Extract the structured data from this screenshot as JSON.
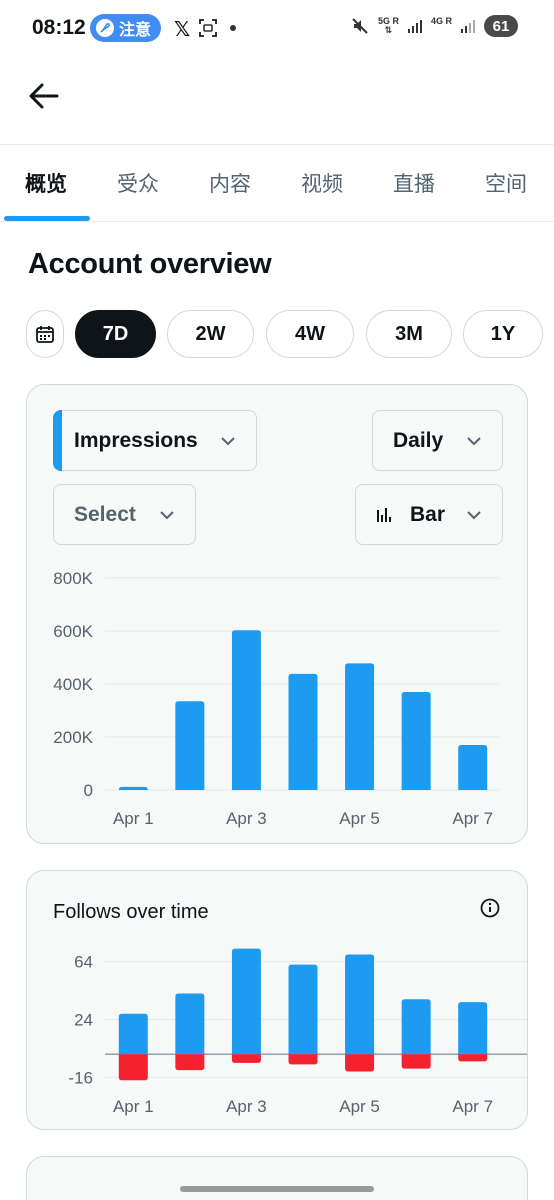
{
  "status_bar": {
    "time": "08:12",
    "notice_label": "注意",
    "x_label": "𝕏",
    "net_5g": "5G",
    "net_4g": "4G",
    "net_r": "R",
    "battery": "61"
  },
  "tabs": [
    {
      "label": "概览",
      "active": true
    },
    {
      "label": "受众",
      "active": false
    },
    {
      "label": "内容",
      "active": false
    },
    {
      "label": "视频",
      "active": false
    },
    {
      "label": "直播",
      "active": false
    },
    {
      "label": "空间",
      "active": false
    }
  ],
  "page_title": "Account overview",
  "ranges": [
    {
      "label": "7D",
      "selected": true
    },
    {
      "label": "2W",
      "selected": false
    },
    {
      "label": "4W",
      "selected": false
    },
    {
      "label": "3M",
      "selected": false
    },
    {
      "label": "1Y",
      "selected": false
    }
  ],
  "controls": {
    "metric": "Impressions",
    "interval": "Daily",
    "compare": "Select",
    "chart_type": "Bar"
  },
  "follows_card": {
    "title": "Follows over time"
  },
  "colors": {
    "accent": "#1d9bf0",
    "negative": "#f4212e",
    "text_primary": "#0f1419",
    "text_secondary": "#536471",
    "card_bg": "#f7f9f9",
    "border": "#cfd9de"
  },
  "chart_data": [
    {
      "type": "bar",
      "categories": [
        "Apr 1",
        "Apr 2",
        "Apr 3",
        "Apr 4",
        "Apr 5",
        "Apr 6",
        "Apr 7"
      ],
      "x_tick_labels": [
        "Apr 1",
        "Apr 3",
        "Apr 5",
        "Apr 7"
      ],
      "values": [
        12000,
        335000,
        603000,
        438000,
        478000,
        370000,
        170000
      ],
      "y_ticks": [
        0,
        200000,
        400000,
        600000,
        800000
      ],
      "y_tick_labels": [
        "0",
        "200K",
        "400K",
        "600K",
        "800K"
      ],
      "ylim": [
        0,
        800000
      ],
      "grid": true,
      "color": "#1d9bf0"
    },
    {
      "type": "bar",
      "categories": [
        "Apr 1",
        "Apr 2",
        "Apr 3",
        "Apr 4",
        "Apr 5",
        "Apr 6",
        "Apr 7"
      ],
      "x_tick_labels": [
        "Apr 1",
        "Apr 3",
        "Apr 5",
        "Apr 7"
      ],
      "series": [
        {
          "values": [
            28,
            42,
            73,
            62,
            69,
            38,
            36
          ],
          "color": "#1d9bf0"
        },
        {
          "values": [
            -18,
            -11,
            -6,
            -7,
            -12,
            -10,
            -5
          ],
          "color": "#f4212e"
        }
      ],
      "y_ticks": [
        -16,
        24,
        64
      ],
      "y_tick_labels": [
        "-16",
        "24",
        "64"
      ],
      "ylim": [
        -22,
        70
      ],
      "grid": true
    }
  ]
}
